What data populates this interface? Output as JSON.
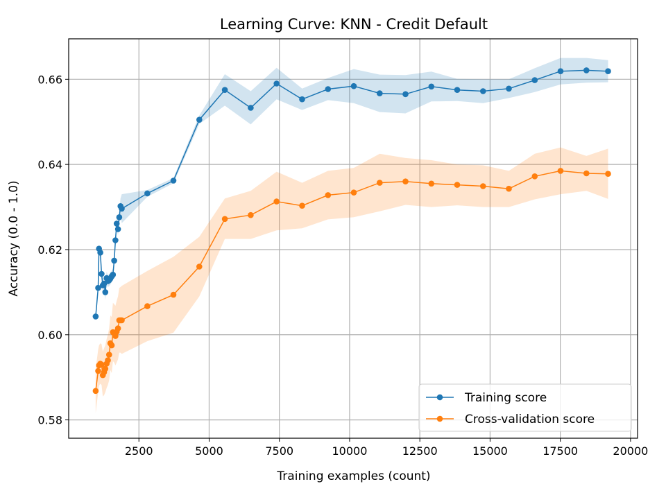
{
  "chart_data": {
    "type": "line",
    "title": "Learning Curve: KNN - Credit Default",
    "xlabel": "Training examples (count)",
    "ylabel": "Accuracy (0.0 - 1.0)",
    "xlim": [
      0,
      20250
    ],
    "ylim": [
      0.5757,
      0.6695
    ],
    "xticks": [
      2500,
      5000,
      7500,
      10000,
      12500,
      15000,
      17500,
      20000
    ],
    "yticks": [
      0.58,
      0.6,
      0.62,
      0.64,
      0.66
    ],
    "ytick_labels": [
      "0.58",
      "0.60",
      "0.62",
      "0.64",
      "0.66"
    ],
    "grid": true,
    "legend_position": "lower-right",
    "x": [
      960,
      1050,
      1080,
      1125,
      1170,
      1215,
      1260,
      1305,
      1350,
      1395,
      1440,
      1485,
      1530,
      1575,
      1620,
      1665,
      1710,
      1755,
      1800,
      1845,
      1890,
      2800,
      3730,
      4650,
      5560,
      6480,
      7400,
      8310,
      9230,
      10150,
      11070,
      11990,
      12910,
      13830,
      14750,
      15670,
      16590,
      17510,
      18430,
      19200
    ],
    "series": [
      {
        "name": "Training score",
        "color": "#1f77b4",
        "values": [
          0.6043,
          0.611,
          0.6202,
          0.6193,
          0.6143,
          0.6116,
          0.612,
          0.61,
          0.6133,
          0.6126,
          0.6128,
          0.6132,
          0.6137,
          0.6141,
          0.6174,
          0.6222,
          0.6261,
          0.6248,
          0.6276,
          0.6302,
          0.6296,
          0.6332,
          0.6362,
          0.6505,
          0.6575,
          0.6533,
          0.659,
          0.6553,
          0.6577,
          0.6584,
          0.6567,
          0.6565,
          0.6583,
          0.6575,
          0.6572,
          0.6578,
          0.6598,
          0.6619,
          0.6621,
          0.6619
        ],
        "band_upper": [
          0.605,
          0.612,
          0.6212,
          0.6205,
          0.6158,
          0.6132,
          0.6135,
          0.6118,
          0.6148,
          0.614,
          0.6142,
          0.6146,
          0.615,
          0.6155,
          0.6188,
          0.6236,
          0.6275,
          0.6262,
          0.6292,
          0.632,
          0.633,
          0.634,
          0.6368,
          0.6515,
          0.6612,
          0.6572,
          0.6627,
          0.6578,
          0.6603,
          0.6624,
          0.6611,
          0.661,
          0.6618,
          0.6601,
          0.66,
          0.66,
          0.6626,
          0.665,
          0.665,
          0.6645
        ],
        "band_lower": [
          0.6036,
          0.61,
          0.6192,
          0.6181,
          0.6128,
          0.61,
          0.6105,
          0.6082,
          0.6118,
          0.6112,
          0.6114,
          0.6118,
          0.6124,
          0.6127,
          0.616,
          0.6208,
          0.6247,
          0.6234,
          0.626,
          0.6284,
          0.6262,
          0.6324,
          0.6356,
          0.6495,
          0.6538,
          0.6494,
          0.6553,
          0.6528,
          0.6551,
          0.6544,
          0.6523,
          0.652,
          0.6548,
          0.6549,
          0.6544,
          0.6556,
          0.657,
          0.6588,
          0.6592,
          0.6593
        ]
      },
      {
        "name": "Cross-validation score",
        "color": "#ff7f0e",
        "values": [
          0.5868,
          0.5915,
          0.5928,
          0.5932,
          0.593,
          0.5905,
          0.5912,
          0.592,
          0.5932,
          0.594,
          0.5953,
          0.598,
          0.5975,
          0.6006,
          0.6003,
          0.5997,
          0.6007,
          0.6015,
          0.6034,
          0.6034,
          0.6034,
          0.6067,
          0.6094,
          0.616,
          0.6272,
          0.6281,
          0.6313,
          0.6303,
          0.6328,
          0.6334,
          0.6357,
          0.636,
          0.6355,
          0.6352,
          0.6349,
          0.6343,
          0.6372,
          0.6385,
          0.6379,
          0.6378
        ],
        "band_upper": [
          0.592,
          0.5965,
          0.5975,
          0.598,
          0.5978,
          0.596,
          0.5968,
          0.5975,
          0.599,
          0.6,
          0.6015,
          0.6045,
          0.6042,
          0.6075,
          0.6072,
          0.6068,
          0.608,
          0.609,
          0.611,
          0.6112,
          0.6115,
          0.615,
          0.6183,
          0.623,
          0.632,
          0.6338,
          0.6383,
          0.6357,
          0.6385,
          0.6392,
          0.6425,
          0.6415,
          0.641,
          0.64,
          0.6398,
          0.6385,
          0.6425,
          0.644,
          0.642,
          0.6437
        ],
        "band_lower": [
          0.5816,
          0.5865,
          0.588,
          0.5885,
          0.5882,
          0.5855,
          0.5858,
          0.5865,
          0.5875,
          0.5882,
          0.5893,
          0.5917,
          0.591,
          0.5938,
          0.5935,
          0.5928,
          0.5935,
          0.5942,
          0.5958,
          0.5958,
          0.5955,
          0.5985,
          0.6005,
          0.609,
          0.6225,
          0.6225,
          0.6245,
          0.625,
          0.6271,
          0.6276,
          0.629,
          0.6305,
          0.63,
          0.6304,
          0.63,
          0.63,
          0.6318,
          0.633,
          0.6338,
          0.6319
        ]
      }
    ]
  }
}
